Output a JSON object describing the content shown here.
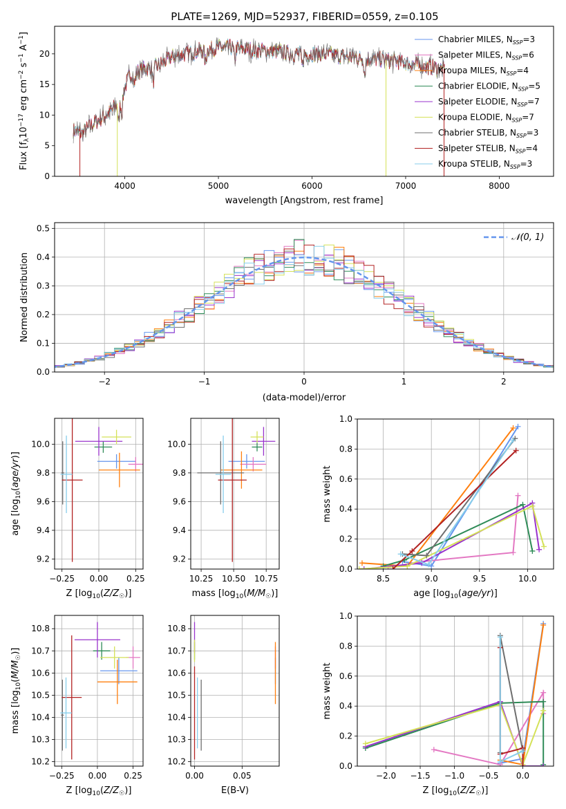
{
  "figure": {
    "title": "PLATE=1269, MJD=52937, FIBERID=0559, z=0.105"
  },
  "colors": {
    "Chabrier MILES": "#6495ed",
    "Salpeter MILES": "#e377c2",
    "Kroupa MILES": "#ff7f0e",
    "Chabrier ELODIE": "#2e8b57",
    "Salpeter ELODIE": "#9932cc",
    "Kroupa ELODIE": "#d4e157",
    "Chabrier STELIB": "#6e6e6e",
    "Salpeter STELIB": "#b22222",
    "Kroupa STELIB": "#87ceeb",
    "normal_curve": "#6495ed",
    "grid": "#b0b0b0"
  },
  "chart_data": [
    {
      "id": "spectrum",
      "type": "line",
      "xlabel": "wavelength [Angstrom, rest frame]",
      "ylabel": "Flux [f_λ10^{-17} erg cm^{-2} s^{-1} A^{-1}]",
      "xlim": [
        3250,
        8580
      ],
      "ylim": [
        0,
        24.5
      ],
      "xticks": [
        4000,
        5000,
        6000,
        7000,
        8000
      ],
      "yticks": [
        0,
        5,
        10,
        15,
        20
      ],
      "grid": false,
      "legend_position": "top-right",
      "continuum": {
        "x": [
          3450,
          3550,
          3650,
          3750,
          3850,
          3950,
          4050,
          4200,
          4350,
          4500,
          4650,
          4800,
          5000,
          5200,
          5400,
          5600,
          5800,
          6000,
          6200,
          6400,
          6600,
          6800,
          7000,
          7200,
          7400
        ],
        "y": [
          7.5,
          7.0,
          8.5,
          9.5,
          10.5,
          12.5,
          16.5,
          17.5,
          18.0,
          19.5,
          20.0,
          20.5,
          21.0,
          21.0,
          20.5,
          20.5,
          20.0,
          20.0,
          19.8,
          19.5,
          19.2,
          19.0,
          18.5,
          18.0,
          17.5
        ]
      },
      "series": [
        {
          "name": "Chabrier MILES",
          "nssp": "3"
        },
        {
          "name": "Salpeter MILES",
          "nssp": "6"
        },
        {
          "name": "Kroupa MILES",
          "nssp": "4"
        },
        {
          "name": "Chabrier ELODIE",
          "nssp": "5"
        },
        {
          "name": "Salpeter ELODIE",
          "nssp": "7"
        },
        {
          "name": "Kroupa ELODIE",
          "nssp": "7"
        },
        {
          "name": "Chabrier STELIB",
          "nssp": "3"
        },
        {
          "name": "Salpeter STELIB",
          "nssp": "4"
        },
        {
          "name": "Kroupa STELIB",
          "nssp": "3"
        }
      ],
      "spikes": [
        {
          "x": 3520,
          "series": "Salpeter STELIB"
        },
        {
          "x": 3920,
          "series": "Kroupa ELODIE"
        },
        {
          "x": 6790,
          "series": "Kroupa ELODIE"
        },
        {
          "x": 7410,
          "series": "Salpeter STELIB"
        }
      ]
    },
    {
      "id": "residual-histogram",
      "type": "step",
      "xlabel": "(data-model)/error",
      "ylabel": "Normed distribution",
      "xlim": [
        -2.5,
        2.5
      ],
      "ylim": [
        0,
        0.52
      ],
      "xticks": [
        -2,
        -1,
        0,
        1,
        2
      ],
      "yticks": [
        0.0,
        0.1,
        0.2,
        0.3,
        0.4,
        0.5
      ],
      "grid": true,
      "legend": [
        "𝒩(0, 1)"
      ],
      "legend_position": "top-right",
      "bin_width": 0.1
    },
    {
      "id": "age-vs-Z",
      "type": "errorbar",
      "xlabel": "Z [log10(Z/Z☉)]",
      "ylabel": "age  [log10(age/yr)]",
      "xlim": [
        -0.3,
        0.3
      ],
      "ylim": [
        9.13,
        10.18
      ],
      "xticks": [
        -0.25,
        0.0,
        0.25
      ],
      "yticks": [
        9.2,
        9.4,
        9.6,
        9.8,
        10.0
      ],
      "grid": true,
      "points": [
        {
          "series": "Chabrier MILES",
          "x": 0.12,
          "xe": 0.13,
          "y": 9.88,
          "ye": 0.05
        },
        {
          "series": "Salpeter MILES",
          "x": 0.25,
          "xe": 0.05,
          "y": 9.86,
          "ye": 0.05
        },
        {
          "series": "Kroupa MILES",
          "x": 0.14,
          "xe": 0.14,
          "y": 9.82,
          "ye": 0.12
        },
        {
          "series": "Chabrier ELODIE",
          "x": 0.03,
          "xe": 0.06,
          "y": 9.98,
          "ye": 0.04
        },
        {
          "series": "Salpeter ELODIE",
          "x": 0.0,
          "xe": 0.16,
          "y": 10.02,
          "ye": 0.1
        },
        {
          "series": "Kroupa ELODIE",
          "x": 0.12,
          "xe": 0.1,
          "y": 10.05,
          "ye": 0.05
        },
        {
          "series": "Chabrier STELIB",
          "x": -0.245,
          "xe": 0.01,
          "y": 9.8,
          "ye": 0.22
        },
        {
          "series": "Salpeter STELIB",
          "x": -0.18,
          "xe": 0.07,
          "y": 9.75,
          "ye": 0.57
        },
        {
          "series": "Kroupa STELIB",
          "x": -0.22,
          "xe": 0.04,
          "y": 9.79,
          "ye": 0.27
        }
      ]
    },
    {
      "id": "age-vs-mass",
      "type": "errorbar",
      "xlabel": "mass [log10(M/M☉)]",
      "ylabel": "",
      "xlim": [
        10.17,
        10.85
      ],
      "ylim": [
        9.13,
        10.18
      ],
      "xticks": [
        10.25,
        10.5,
        10.75
      ],
      "yticks": [
        9.2,
        9.4,
        9.6,
        9.8,
        10.0
      ],
      "grid": true,
      "points": [
        {
          "series": "Chabrier MILES",
          "x": 10.6,
          "xe": 0.14,
          "y": 9.88,
          "ye": 0.05
        },
        {
          "series": "Salpeter MILES",
          "x": 10.65,
          "xe": 0.1,
          "y": 9.86,
          "ye": 0.05
        },
        {
          "series": "Kroupa MILES",
          "x": 10.56,
          "xe": 0.16,
          "y": 9.82,
          "ye": 0.13
        },
        {
          "series": "Chabrier ELODIE",
          "x": 10.68,
          "xe": 0.04,
          "y": 9.98,
          "ye": 0.03
        },
        {
          "series": "Salpeter ELODIE",
          "x": 10.73,
          "xe": 0.09,
          "y": 10.02,
          "ye": 0.1
        },
        {
          "series": "Kroupa ELODIE",
          "x": 10.68,
          "xe": 0.05,
          "y": 10.05,
          "ye": 0.04
        },
        {
          "series": "Chabrier STELIB",
          "x": 10.4,
          "xe": 0.18,
          "y": 9.8,
          "ye": 0.22
        },
        {
          "series": "Salpeter STELIB",
          "x": 10.49,
          "xe": 0.11,
          "y": 9.75,
          "ye": 0.57
        },
        {
          "series": "Kroupa STELIB",
          "x": 10.42,
          "xe": 0.06,
          "y": 9.79,
          "ye": 0.27
        }
      ]
    },
    {
      "id": "mass-weight-vs-age",
      "type": "line",
      "xlabel": "age  [log10(age/yr)]",
      "ylabel": "mass weight",
      "xlim": [
        8.23,
        10.27
      ],
      "ylim": [
        0,
        1.0
      ],
      "xticks": [
        8.5,
        9.0,
        9.5,
        10.0
      ],
      "yticks": [
        0.0,
        0.2,
        0.4,
        0.6,
        0.8,
        1.0
      ],
      "grid": true,
      "series": [
        {
          "name": "Chabrier MILES",
          "x": [
            8.7,
            9.0,
            9.9
          ],
          "y": [
            0.05,
            0.02,
            0.95
          ]
        },
        {
          "name": "Salpeter MILES",
          "x": [
            8.55,
            8.9,
            9.85,
            9.9
          ],
          "y": [
            0.01,
            0.05,
            0.11,
            0.49
          ]
        },
        {
          "name": "Kroupa MILES",
          "x": [
            8.28,
            8.75,
            9.85
          ],
          "y": [
            0.04,
            0.02,
            0.94
          ]
        },
        {
          "name": "Chabrier ELODIE",
          "x": [
            8.5,
            8.72,
            9.95,
            10.05
          ],
          "y": [
            0.02,
            0.06,
            0.43,
            0.12
          ]
        },
        {
          "name": "Salpeter ELODIE",
          "x": [
            8.3,
            8.9,
            10.05,
            10.12
          ],
          "y": [
            0.0,
            0.04,
            0.44,
            0.13
          ]
        },
        {
          "name": "Kroupa ELODIE",
          "x": [
            8.25,
            8.75,
            10.05,
            10.17
          ],
          "y": [
            0.0,
            0.02,
            0.42,
            0.15
          ]
        },
        {
          "name": "Chabrier STELIB",
          "x": [
            8.7,
            8.95,
            9.87
          ],
          "y": [
            0.1,
            0.09,
            0.87
          ]
        },
        {
          "name": "Salpeter STELIB",
          "x": [
            8.6,
            8.8,
            9.88
          ],
          "y": [
            0.0,
            0.12,
            0.79
          ]
        },
        {
          "name": "Kroupa STELIB",
          "x": [
            8.68,
            8.97,
            9.85
          ],
          "y": [
            0.1,
            0.03,
            0.86
          ]
        }
      ]
    },
    {
      "id": "mass-vs-Z",
      "type": "errorbar",
      "xlabel": "Z [log10(Z/Z☉)]",
      "ylabel": "mass [log10(M/M☉)]",
      "xlim": [
        -0.3,
        0.32
      ],
      "ylim": [
        10.18,
        10.86
      ],
      "xticks": [
        -0.25,
        0.0,
        0.25
      ],
      "yticks": [
        10.2,
        10.3,
        10.4,
        10.5,
        10.6,
        10.7,
        10.8
      ],
      "grid": true,
      "points": [
        {
          "series": "Chabrier MILES",
          "x": 0.15,
          "xe": 0.13,
          "y": 10.61,
          "ye": 0.06
        },
        {
          "series": "Salpeter MILES",
          "x": 0.25,
          "xe": 0.05,
          "y": 10.67,
          "ye": 0.05
        },
        {
          "series": "Kroupa MILES",
          "x": 0.14,
          "xe": 0.14,
          "y": 10.56,
          "ye": 0.1
        },
        {
          "series": "Chabrier ELODIE",
          "x": 0.03,
          "xe": 0.06,
          "y": 10.7,
          "ye": 0.04
        },
        {
          "series": "Salpeter ELODIE",
          "x": 0.0,
          "xe": 0.16,
          "y": 10.75,
          "ye": 0.08
        },
        {
          "series": "Kroupa ELODIE",
          "x": 0.12,
          "xe": 0.1,
          "y": 10.67,
          "ye": 0.05
        },
        {
          "series": "Chabrier STELIB",
          "x": -0.245,
          "xe": 0.01,
          "y": 10.41,
          "ye": 0.16
        },
        {
          "series": "Salpeter STELIB",
          "x": -0.18,
          "xe": 0.07,
          "y": 10.49,
          "ye": 0.28
        },
        {
          "series": "Kroupa STELIB",
          "x": -0.22,
          "xe": 0.04,
          "y": 10.42,
          "ye": 0.16
        }
      ]
    },
    {
      "id": "mass-vs-ebv",
      "type": "errorbar",
      "xlabel": "E(B-V)",
      "ylabel": "",
      "xlim": [
        -0.004,
        0.089
      ],
      "ylim": [
        10.18,
        10.86
      ],
      "xticks": [
        0.0,
        0.05
      ],
      "xtick_labels": [
        "0.00",
        "0.05"
      ],
      "yticks": [
        10.2,
        10.3,
        10.4,
        10.5,
        10.6,
        10.7,
        10.8
      ],
      "grid": true,
      "points": [
        {
          "series": "Chabrier MILES",
          "x": 0.085,
          "xe": 0,
          "y": 10.61,
          "ye": 0.06
        },
        {
          "series": "Salpeter MILES",
          "x": 0.085,
          "xe": 0,
          "y": 10.67,
          "ye": 0.05
        },
        {
          "series": "Kroupa MILES",
          "x": 0.085,
          "xe": 0,
          "y": 10.6,
          "ye": 0.14
        },
        {
          "series": "Chabrier ELODIE",
          "x": 0.0,
          "xe": 0,
          "y": 10.7,
          "ye": 0.04
        },
        {
          "series": "Salpeter ELODIE",
          "x": 0.0,
          "xe": 0,
          "y": 10.76,
          "ye": 0.07
        },
        {
          "series": "Kroupa ELODIE",
          "x": 0.0,
          "xe": 0,
          "y": 10.7,
          "ye": 0.05
        },
        {
          "series": "Chabrier STELIB",
          "x": 0.007,
          "xe": 0,
          "y": 10.41,
          "ye": 0.16
        },
        {
          "series": "Salpeter STELIB",
          "x": 0.0,
          "xe": 0,
          "y": 10.42,
          "ye": 0.21
        },
        {
          "series": "Kroupa STELIB",
          "x": 0.003,
          "xe": 0,
          "y": 10.42,
          "ye": 0.16
        }
      ]
    },
    {
      "id": "mass-weight-vs-Z",
      "type": "line",
      "xlabel": "Z [log10(Z/Z☉)]",
      "ylabel": "mass weight",
      "xlim": [
        -2.42,
        0.45
      ],
      "ylim": [
        0,
        1.0
      ],
      "xticks": [
        -2.0,
        -1.5,
        -1.0,
        -0.5,
        0.0
      ],
      "yticks": [
        0.0,
        0.2,
        0.4,
        0.6,
        0.8,
        1.0
      ],
      "grid": true,
      "series": [
        {
          "name": "Chabrier MILES",
          "x": [
            -0.33,
            0.0,
            0.3
          ],
          "y": [
            0.02,
            0.05,
            0.95
          ]
        },
        {
          "name": "Salpeter MILES",
          "x": [
            -1.3,
            -0.33,
            0.3,
            0.3
          ],
          "y": [
            0.11,
            0.01,
            0.49,
            0.35
          ]
        },
        {
          "name": "Kroupa MILES",
          "x": [
            -0.33,
            0.0,
            0.3
          ],
          "y": [
            0.04,
            0.01,
            0.94
          ]
        },
        {
          "name": "Chabrier ELODIE",
          "x": [
            -2.3,
            -0.33,
            0.3,
            0.3
          ],
          "y": [
            0.12,
            0.42,
            0.43,
            0.01
          ]
        },
        {
          "name": "Salpeter ELODIE",
          "x": [
            -2.3,
            -0.33,
            0.0,
            0.3
          ],
          "y": [
            0.13,
            0.43,
            0.0,
            0.0
          ]
        },
        {
          "name": "Kroupa ELODIE",
          "x": [
            -2.3,
            -0.33,
            0.0,
            0.3
          ],
          "y": [
            0.15,
            0.41,
            0.01,
            0.37
          ]
        },
        {
          "name": "Chabrier STELIB",
          "x": [
            -0.33,
            -0.33,
            0.0
          ],
          "y": [
            0.09,
            0.87,
            0.1
          ]
        },
        {
          "name": "Salpeter STELIB",
          "x": [
            -0.33,
            -0.33,
            0.0,
            0.0
          ],
          "y": [
            0.79,
            0.08,
            0.12,
            0.0
          ]
        },
        {
          "name": "Kroupa STELIB",
          "x": [
            -0.33,
            -0.33,
            0.0
          ],
          "y": [
            0.86,
            0.03,
            0.1
          ]
        }
      ]
    }
  ]
}
